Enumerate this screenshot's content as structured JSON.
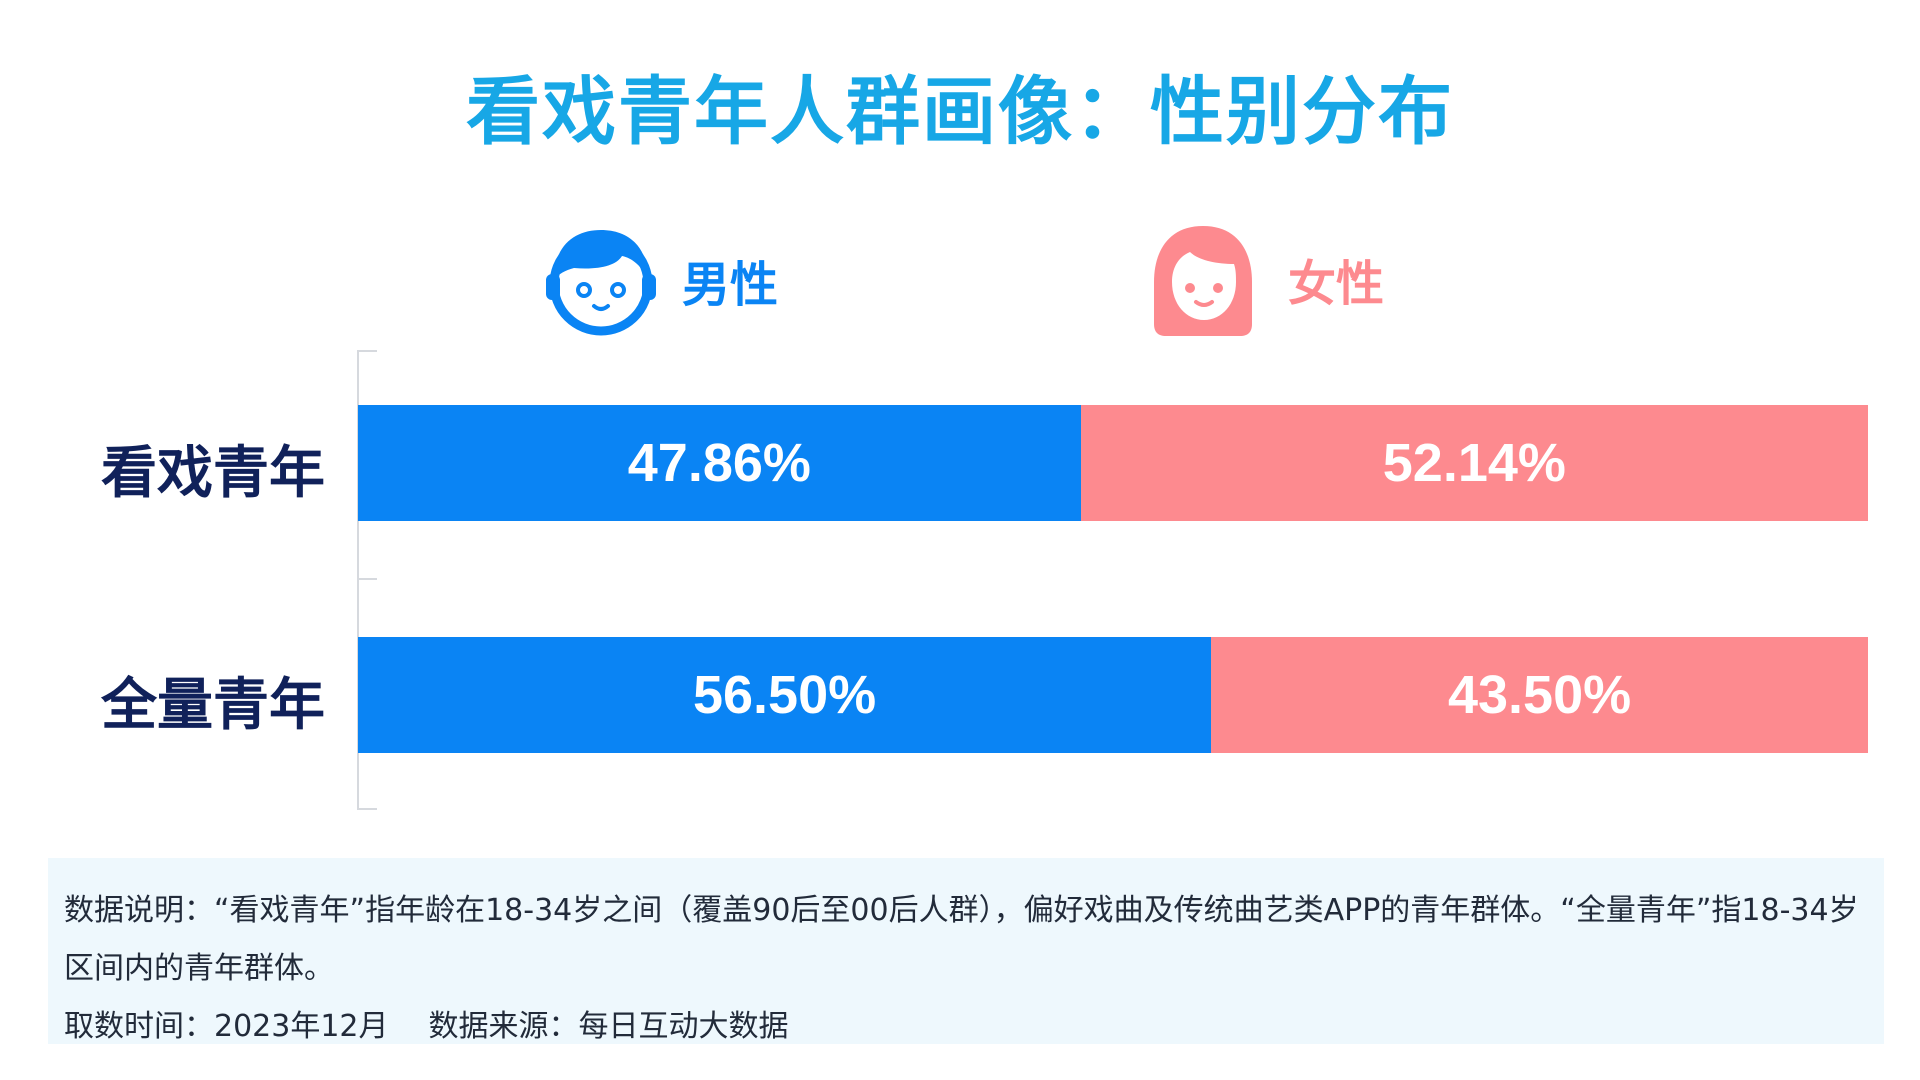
{
  "title": "看戏青年人群画像：性别分布",
  "legend": {
    "male": "男性",
    "female": "女性"
  },
  "colors": {
    "male": "#0a84f4",
    "female": "#fd8a8f",
    "title": "#17a7e6",
    "category": "#10215a"
  },
  "icons": {
    "male": "boy-face-icon",
    "female": "girl-face-icon"
  },
  "chart_data": {
    "type": "bar",
    "orientation": "horizontal",
    "stacked": true,
    "normalized": true,
    "categories": [
      "看戏青年",
      "全量青年"
    ],
    "series": [
      {
        "name": "男性",
        "values": [
          47.86,
          56.5
        ],
        "labels": [
          "47.86%",
          "56.50%"
        ]
      },
      {
        "name": "女性",
        "values": [
          52.14,
          43.5
        ],
        "labels": [
          "52.14%",
          "43.50%"
        ]
      }
    ],
    "unit": "%",
    "xlim": [
      0,
      100
    ],
    "grid": false,
    "legend_position": "top"
  },
  "notes": {
    "description": "数据说明：“看戏青年”指年龄在18-34岁之间（覆盖90后至00后人群），偏好戏曲及传统曲艺类APP的青年群体。“全量青年”指18-34岁区间内的青年群体。",
    "time": "取数时间：2023年12月",
    "source": "数据来源：每日互动大数据"
  }
}
